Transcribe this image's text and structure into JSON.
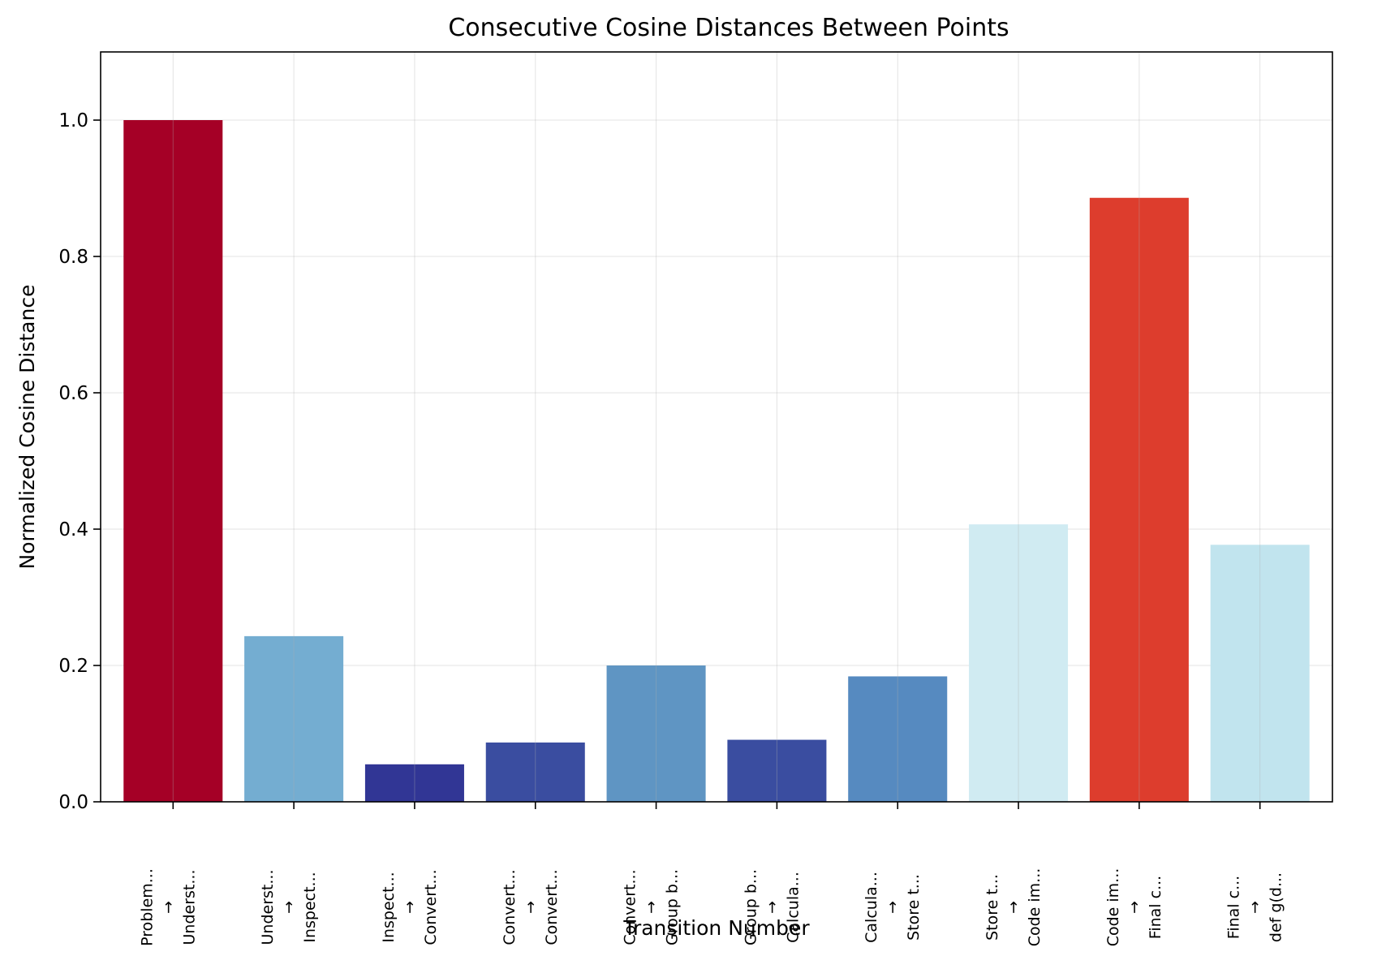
{
  "chart_data": {
    "type": "bar",
    "title": "Consecutive Cosine Distances Between Points",
    "xlabel": "Transition Number",
    "ylabel": "Normalized Cosine Distance",
    "ylim": [
      0,
      1.1
    ],
    "yticks": [
      0.0,
      0.2,
      0.4,
      0.6,
      0.8,
      1.0
    ],
    "ytick_labels": [
      "0.0",
      "0.2",
      "0.4",
      "0.6",
      "0.8",
      "1.0"
    ],
    "grid": true,
    "categories": [
      {
        "from": "Problem...",
        "arrow": "→",
        "to": "Underst..."
      },
      {
        "from": "Underst...",
        "arrow": "→",
        "to": "Inspect..."
      },
      {
        "from": "Inspect...",
        "arrow": "→",
        "to": "Convert..."
      },
      {
        "from": "Convert...",
        "arrow": "→",
        "to": "Convert..."
      },
      {
        "from": "Convert...",
        "arrow": "→",
        "to": "Group b..."
      },
      {
        "from": "Group b...",
        "arrow": "→",
        "to": "Calcula..."
      },
      {
        "from": "Calcula...",
        "arrow": "→",
        "to": "Store t..."
      },
      {
        "from": "Store t...",
        "arrow": "→",
        "to": "Code im..."
      },
      {
        "from": "Code im...",
        "arrow": "→",
        "to": "Final c..."
      },
      {
        "from": "Final c...",
        "arrow": "→",
        "to": "def g(d..."
      }
    ],
    "values": [
      1.0,
      0.243,
      0.055,
      0.087,
      0.2,
      0.091,
      0.184,
      0.407,
      0.886,
      0.377
    ],
    "colors": [
      "#a50026",
      "#74add1",
      "#313695",
      "#3a4da0",
      "#5f95c3",
      "#3a4da0",
      "#568ac0",
      "#d0ebf2",
      "#dd3d2d",
      "#c1e4ee"
    ]
  }
}
